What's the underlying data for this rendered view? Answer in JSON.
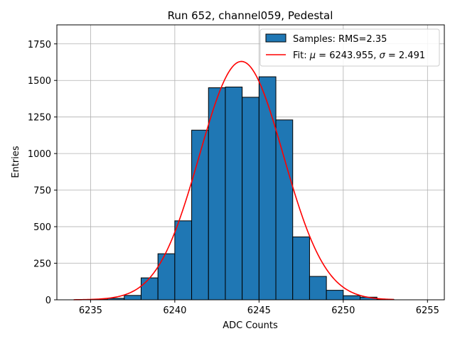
{
  "chart_data": {
    "type": "bar",
    "title": "Run 652, channel059, Pedestal",
    "xlabel": "ADC Counts",
    "ylabel": "Entries",
    "xlim": [
      6233.0,
      6256.0
    ],
    "ylim": [
      0,
      1880
    ],
    "xticks": [
      6235,
      6240,
      6245,
      6250,
      6255
    ],
    "yticks": [
      0,
      250,
      500,
      750,
      1000,
      1250,
      1500,
      1750
    ],
    "grid": true,
    "legend_position": "top-right",
    "bar_color": "#1f77b4",
    "fit_color": "#ff0000",
    "bins": [
      {
        "x0": 6235,
        "x1": 6236,
        "value": 2
      },
      {
        "x0": 6236,
        "x1": 6237,
        "value": 10
      },
      {
        "x0": 6237,
        "x1": 6238,
        "value": 30
      },
      {
        "x0": 6238,
        "x1": 6239,
        "value": 150
      },
      {
        "x0": 6239,
        "x1": 6240,
        "value": 315
      },
      {
        "x0": 6240,
        "x1": 6241,
        "value": 540
      },
      {
        "x0": 6241,
        "x1": 6242,
        "value": 1160
      },
      {
        "x0": 6242,
        "x1": 6243,
        "value": 1450
      },
      {
        "x0": 6243,
        "x1": 6244,
        "value": 1455
      },
      {
        "x0": 6244,
        "x1": 6245,
        "value": 1385
      },
      {
        "x0": 6245,
        "x1": 6246,
        "value": 1525
      },
      {
        "x0": 6246,
        "x1": 6247,
        "value": 1230
      },
      {
        "x0": 6247,
        "x1": 6248,
        "value": 430
      },
      {
        "x0": 6248,
        "x1": 6249,
        "value": 160
      },
      {
        "x0": 6249,
        "x1": 6250,
        "value": 65
      },
      {
        "x0": 6250,
        "x1": 6251,
        "value": 28
      },
      {
        "x0": 6251,
        "x1": 6252,
        "value": 18
      },
      {
        "x0": 6252,
        "x1": 6253,
        "value": 3
      }
    ],
    "fit": {
      "mu": 6243.955,
      "sigma": 2.491,
      "amplitude": 1630,
      "x_range": [
        6234,
        6253
      ]
    },
    "legend": [
      {
        "label": "Samples: RMS=2.35",
        "kind": "patch"
      },
      {
        "label_prefix": "Fit: ",
        "mu_symbol": "μ",
        "mu_text": " = 6243.955, ",
        "sigma_symbol": "σ",
        "sigma_text": " = 2.491",
        "kind": "line"
      }
    ]
  }
}
